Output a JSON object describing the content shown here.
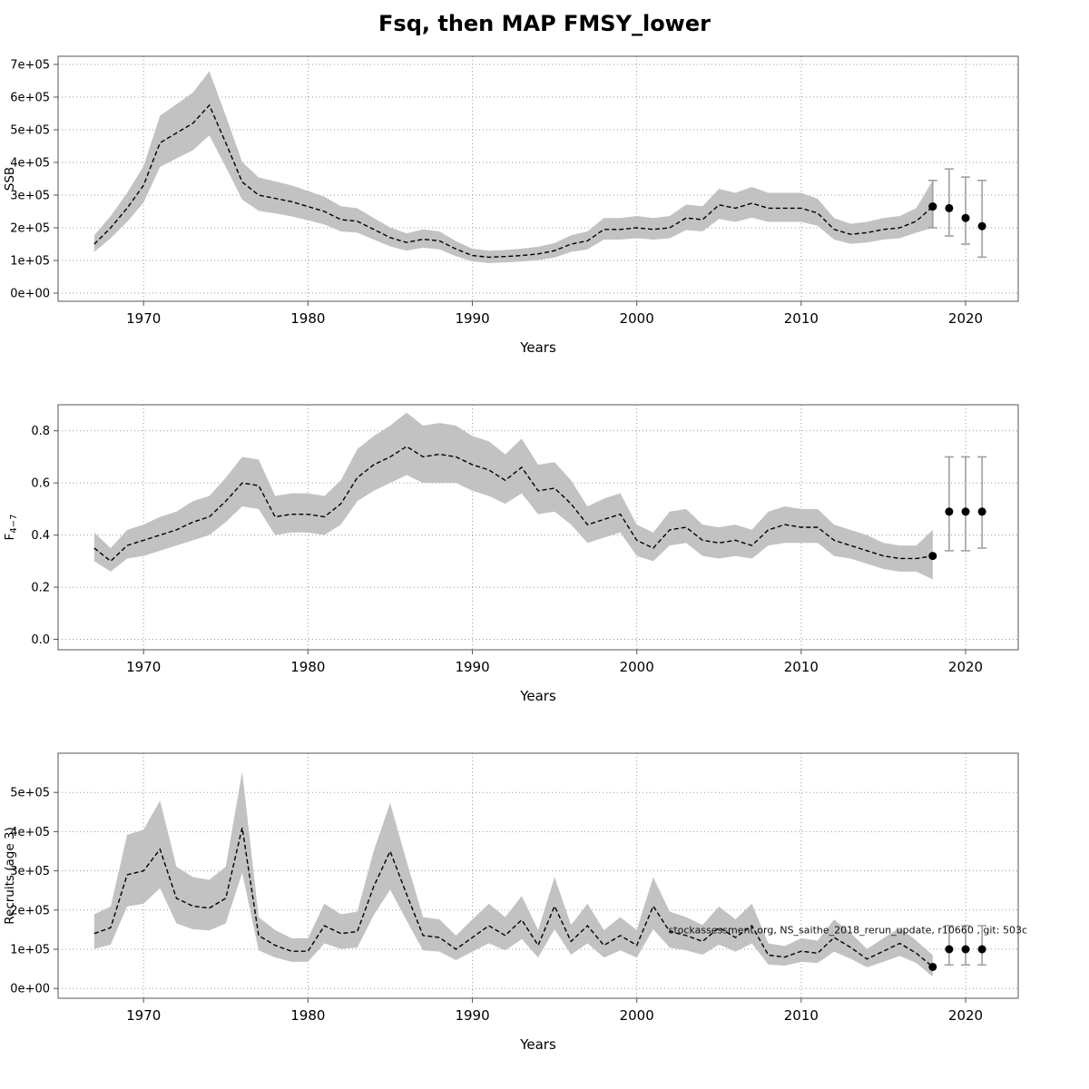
{
  "title": "Fsq, then MAP FMSY_lower",
  "watermark": "stockassessment.org, NS_saithe_2018_rerun_update, r10660 , git: 503c",
  "chart_data": [
    {
      "type": "area",
      "name": "ssb",
      "title": "",
      "xlabel": "Years",
      "ylabel": "SSB",
      "xlim": [
        1964.8,
        2023.2
      ],
      "ylim": [
        -25000,
        725000
      ],
      "grid": true,
      "legend": "none",
      "xticks": [
        1970,
        1980,
        1990,
        2000,
        2010,
        2020
      ],
      "yticks": [
        0,
        100000,
        200000,
        300000,
        400000,
        500000,
        600000,
        700000
      ],
      "ytick_labels": [
        "0e+00",
        "1e+05",
        "2e+05",
        "3e+05",
        "4e+05",
        "5e+05",
        "6e+05",
        "7e+05"
      ],
      "x": [
        1967,
        1968,
        1969,
        1970,
        1971,
        1972,
        1973,
        1974,
        1975,
        1976,
        1977,
        1978,
        1979,
        1980,
        1981,
        1982,
        1983,
        1984,
        1985,
        1986,
        1987,
        1988,
        1989,
        1990,
        1991,
        1992,
        1993,
        1994,
        1995,
        1996,
        1997,
        1998,
        1999,
        2000,
        2001,
        2002,
        2003,
        2004,
        2005,
        2006,
        2007,
        2008,
        2009,
        2010,
        2011,
        2012,
        2013,
        2014,
        2015,
        2016,
        2017,
        2018
      ],
      "values": [
        150000,
        200000,
        260000,
        330000,
        460000,
        490000,
        520000,
        575000,
        460000,
        340000,
        300000,
        290000,
        280000,
        265000,
        250000,
        225000,
        220000,
        195000,
        170000,
        155000,
        165000,
        160000,
        135000,
        115000,
        110000,
        112000,
        115000,
        120000,
        130000,
        150000,
        160000,
        195000,
        195000,
        200000,
        195000,
        200000,
        230000,
        225000,
        270000,
        260000,
        275000,
        260000,
        260000,
        260000,
        245000,
        195000,
        180000,
        185000,
        195000,
        200000,
        220000,
        265000
      ],
      "lo": [
        126000,
        168000,
        218000,
        277000,
        386000,
        412000,
        437000,
        483000,
        386000,
        286000,
        252000,
        244000,
        235000,
        223000,
        210000,
        189000,
        185000,
        164000,
        143000,
        130000,
        139000,
        134000,
        113000,
        97000,
        92000,
        94000,
        97000,
        101000,
        109000,
        126000,
        134000,
        164000,
        164000,
        168000,
        164000,
        168000,
        193000,
        189000,
        227000,
        218000,
        231000,
        218000,
        218000,
        218000,
        206000,
        164000,
        151000,
        155000,
        164000,
        168000,
        185000,
        200000
      ],
      "hi": [
        177000,
        236000,
        307000,
        389000,
        543000,
        578000,
        614000,
        679000,
        543000,
        401000,
        354000,
        342000,
        330000,
        313000,
        295000,
        266000,
        260000,
        230000,
        201000,
        183000,
        195000,
        189000,
        159000,
        136000,
        130000,
        132000,
        136000,
        142000,
        153000,
        177000,
        189000,
        230000,
        230000,
        236000,
        230000,
        236000,
        271000,
        266000,
        319000,
        307000,
        325000,
        307000,
        307000,
        307000,
        289000,
        230000,
        212000,
        218000,
        230000,
        236000,
        260000,
        345000
      ],
      "forecast": {
        "x": [
          2018,
          2019,
          2020,
          2021
        ],
        "values": [
          265000,
          260000,
          230000,
          205000
        ],
        "lo": [
          200000,
          175000,
          150000,
          110000
        ],
        "hi": [
          345000,
          380000,
          355000,
          345000
        ]
      }
    },
    {
      "type": "area",
      "name": "fbar",
      "title": "",
      "xlabel": "Years",
      "ylabel": "F",
      "ylabel_sub": "4−7",
      "xlim": [
        1964.8,
        2023.2
      ],
      "ylim": [
        -0.04,
        0.9
      ],
      "grid": true,
      "legend": "none",
      "xticks": [
        1970,
        1980,
        1990,
        2000,
        2010,
        2020
      ],
      "yticks": [
        0.0,
        0.2,
        0.4,
        0.6,
        0.8
      ],
      "ytick_labels": [
        "0.0",
        "0.2",
        "0.4",
        "0.6",
        "0.8"
      ],
      "x": [
        1967,
        1968,
        1969,
        1970,
        1971,
        1972,
        1973,
        1974,
        1975,
        1976,
        1977,
        1978,
        1979,
        1980,
        1981,
        1982,
        1983,
        1984,
        1985,
        1986,
        1987,
        1988,
        1989,
        1990,
        1991,
        1992,
        1993,
        1994,
        1995,
        1996,
        1997,
        1998,
        1999,
        2000,
        2001,
        2002,
        2003,
        2004,
        2005,
        2006,
        2007,
        2008,
        2009,
        2010,
        2011,
        2012,
        2013,
        2014,
        2015,
        2016,
        2017,
        2018
      ],
      "values": [
        0.35,
        0.3,
        0.36,
        0.38,
        0.4,
        0.42,
        0.45,
        0.47,
        0.53,
        0.6,
        0.59,
        0.47,
        0.48,
        0.48,
        0.47,
        0.52,
        0.62,
        0.67,
        0.7,
        0.74,
        0.7,
        0.71,
        0.7,
        0.67,
        0.65,
        0.61,
        0.66,
        0.57,
        0.58,
        0.52,
        0.44,
        0.46,
        0.48,
        0.38,
        0.35,
        0.42,
        0.43,
        0.38,
        0.37,
        0.38,
        0.36,
        0.42,
        0.44,
        0.43,
        0.43,
        0.38,
        0.36,
        0.34,
        0.32,
        0.31,
        0.31,
        0.32
      ],
      "lo": [
        0.3,
        0.26,
        0.31,
        0.32,
        0.34,
        0.36,
        0.38,
        0.4,
        0.45,
        0.51,
        0.5,
        0.4,
        0.41,
        0.41,
        0.4,
        0.44,
        0.53,
        0.57,
        0.6,
        0.63,
        0.6,
        0.6,
        0.6,
        0.57,
        0.55,
        0.52,
        0.56,
        0.48,
        0.49,
        0.44,
        0.37,
        0.39,
        0.41,
        0.32,
        0.3,
        0.36,
        0.37,
        0.32,
        0.31,
        0.32,
        0.31,
        0.36,
        0.37,
        0.37,
        0.37,
        0.32,
        0.31,
        0.29,
        0.27,
        0.26,
        0.26,
        0.23
      ],
      "hi": [
        0.41,
        0.35,
        0.42,
        0.44,
        0.47,
        0.49,
        0.53,
        0.55,
        0.62,
        0.7,
        0.69,
        0.55,
        0.56,
        0.56,
        0.55,
        0.61,
        0.73,
        0.78,
        0.82,
        0.87,
        0.82,
        0.83,
        0.82,
        0.78,
        0.76,
        0.71,
        0.77,
        0.67,
        0.68,
        0.61,
        0.51,
        0.54,
        0.56,
        0.44,
        0.41,
        0.49,
        0.5,
        0.44,
        0.43,
        0.44,
        0.42,
        0.49,
        0.51,
        0.5,
        0.5,
        0.44,
        0.42,
        0.4,
        0.37,
        0.36,
        0.36,
        0.42
      ],
      "forecast": {
        "x": [
          2019,
          2020,
          2021
        ],
        "values": [
          0.49,
          0.49,
          0.49
        ],
        "lo": [
          0.34,
          0.34,
          0.35
        ],
        "hi": [
          0.7,
          0.7,
          0.7
        ]
      }
    },
    {
      "type": "area",
      "name": "recruits",
      "title": "",
      "xlabel": "Years",
      "ylabel": "Recruits (age 3)",
      "xlim": [
        1964.8,
        2023.2
      ],
      "ylim": [
        -25000,
        600000
      ],
      "grid": true,
      "legend": "none",
      "xticks": [
        1970,
        1980,
        1990,
        2000,
        2010,
        2020
      ],
      "yticks": [
        0,
        100000,
        200000,
        300000,
        400000,
        500000
      ],
      "ytick_labels": [
        "0e+00",
        "1e+05",
        "2e+05",
        "3e+05",
        "4e+05",
        "5e+05"
      ],
      "x": [
        1967,
        1968,
        1969,
        1970,
        1971,
        1972,
        1973,
        1974,
        1975,
        1976,
        1977,
        1978,
        1979,
        1980,
        1981,
        1982,
        1983,
        1984,
        1985,
        1986,
        1987,
        1988,
        1989,
        1990,
        1991,
        1992,
        1993,
        1994,
        1995,
        1996,
        1997,
        1998,
        1999,
        2000,
        2001,
        2002,
        2003,
        2004,
        2005,
        2006,
        2007,
        2008,
        2009,
        2010,
        2011,
        2012,
        2013,
        2014,
        2015,
        2016,
        2017,
        2018
      ],
      "values": [
        140000,
        155000,
        290000,
        300000,
        355000,
        230000,
        210000,
        205000,
        230000,
        410000,
        135000,
        110000,
        95000,
        95000,
        160000,
        140000,
        145000,
        260000,
        350000,
        240000,
        135000,
        130000,
        100000,
        130000,
        160000,
        135000,
        175000,
        110000,
        210000,
        120000,
        160000,
        110000,
        135000,
        110000,
        210000,
        145000,
        135000,
        120000,
        155000,
        130000,
        160000,
        85000,
        80000,
        95000,
        90000,
        130000,
        105000,
        75000,
        95000,
        115000,
        90000,
        55000
      ],
      "lo": [
        101000,
        112000,
        209000,
        216000,
        256000,
        166000,
        151000,
        148000,
        166000,
        295000,
        97000,
        79000,
        68000,
        68000,
        115000,
        101000,
        104000,
        187000,
        252000,
        173000,
        97000,
        94000,
        72000,
        94000,
        115000,
        97000,
        126000,
        79000,
        151000,
        86000,
        115000,
        79000,
        97000,
        79000,
        151000,
        104000,
        97000,
        86000,
        112000,
        94000,
        115000,
        61000,
        58000,
        68000,
        65000,
        94000,
        76000,
        54000,
        68000,
        83000,
        65000,
        30000
      ],
      "hi": [
        189000,
        209000,
        392000,
        405000,
        479000,
        311000,
        284000,
        277000,
        311000,
        554000,
        182000,
        149000,
        128000,
        128000,
        216000,
        189000,
        196000,
        351000,
        473000,
        324000,
        182000,
        176000,
        135000,
        176000,
        216000,
        182000,
        236000,
        149000,
        284000,
        162000,
        216000,
        149000,
        182000,
        149000,
        284000,
        196000,
        182000,
        162000,
        209000,
        176000,
        216000,
        115000,
        108000,
        128000,
        122000,
        176000,
        142000,
        101000,
        128000,
        155000,
        122000,
        85000
      ],
      "forecast": {
        "x": [
          2019,
          2020,
          2021
        ],
        "values": [
          100000,
          100000,
          100000
        ],
        "lo": [
          60000,
          60000,
          60000
        ],
        "hi": [
          160000,
          160000,
          160000
        ]
      },
      "annotation": {
        "text": "stockassessment.org, NS_saithe_2018_rerun_update, r10660 , git: 503c",
        "y": 140000
      }
    }
  ],
  "colors": {
    "band": "#c2c2c2",
    "line": "#000000",
    "grid": "#9a9a9a",
    "errorbar": "#a0a0a0",
    "dot": "#000000",
    "border": "#555555"
  }
}
